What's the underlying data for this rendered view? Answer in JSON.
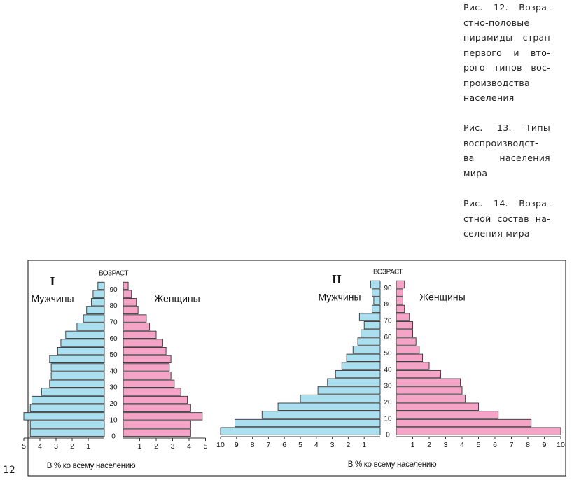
{
  "captions": [
    {
      "lines": [
        "Рис. 12. Возра-",
        "стно-половые",
        "пирамиды стран",
        "первого и вто-",
        "рого типов вос-",
        "производства",
        "населения"
      ]
    },
    {
      "lines": [
        "Рис. 13. Типы",
        "воспроизводст-",
        "ва населения",
        "мира"
      ]
    },
    {
      "lines": [
        "Рис. 14. Возра-",
        "стной состав на-",
        "селения мира"
      ]
    }
  ],
  "page_number": "12",
  "chart_data": [
    {
      "type": "pyramid",
      "label": "I",
      "age_label": "ВОЗРАСТ",
      "xlabel": "В % ко всему населению",
      "ages": [
        0,
        5,
        10,
        15,
        20,
        25,
        30,
        35,
        40,
        45,
        50,
        55,
        60,
        65,
        70,
        75,
        80,
        85,
        90
      ],
      "ylim": [
        0,
        95
      ],
      "yticks": [
        0,
        10,
        20,
        30,
        40,
        50,
        60,
        70,
        80,
        90
      ],
      "series": [
        {
          "name": "Мужчины",
          "color": "#aadff0",
          "xlim": [
            0,
            5
          ],
          "xticks": [
            5,
            4,
            3,
            2,
            1
          ],
          "values": [
            4.6,
            4.6,
            5.0,
            4.6,
            4.5,
            3.9,
            3.4,
            3.3,
            3.3,
            3.4,
            2.9,
            2.7,
            2.4,
            1.7,
            1.3,
            1.1,
            0.8,
            0.7,
            0.4
          ]
        },
        {
          "name": "Женщины",
          "color": "#f5a3c7",
          "xlim": [
            0,
            5
          ],
          "xticks": [
            1,
            2,
            3,
            4,
            5
          ],
          "values": [
            4.1,
            4.1,
            4.8,
            4.1,
            3.9,
            3.5,
            3.1,
            2.9,
            2.8,
            2.9,
            2.6,
            2.4,
            2.0,
            1.6,
            1.4,
            0.9,
            0.8,
            0.5,
            0.3
          ]
        }
      ]
    },
    {
      "type": "pyramid",
      "label": "II",
      "age_label": "ВОЗРАСТ",
      "xlabel": "В % ко всему населению",
      "ages": [
        0,
        5,
        10,
        15,
        20,
        25,
        30,
        35,
        40,
        45,
        50,
        55,
        60,
        65,
        70,
        75,
        80,
        85,
        90
      ],
      "ylim": [
        0,
        95
      ],
      "yticks": [
        0,
        10,
        20,
        30,
        40,
        50,
        60,
        70,
        80,
        90
      ],
      "series": [
        {
          "name": "Мужчины",
          "color": "#aadff0",
          "xlim": [
            0,
            10
          ],
          "xticks": [
            10,
            9,
            8,
            7,
            6,
            5,
            4,
            3,
            2,
            1
          ],
          "values": [
            10.0,
            9.1,
            7.4,
            6.4,
            5.0,
            3.9,
            3.3,
            2.8,
            2.4,
            2.1,
            1.7,
            1.4,
            1.2,
            1.0,
            1.3,
            0.5,
            0.4,
            0.5,
            0.6
          ]
        },
        {
          "name": "Женщины",
          "color": "#f5a3c7",
          "xlim": [
            0,
            10
          ],
          "xticks": [
            1,
            2,
            3,
            4,
            5,
            6,
            7,
            8,
            9,
            10
          ],
          "values": [
            10.0,
            8.2,
            6.2,
            5.0,
            4.2,
            4.0,
            3.9,
            2.7,
            2.0,
            1.6,
            1.4,
            1.2,
            1.0,
            1.0,
            0.8,
            0.5,
            0.4,
            0.4,
            0.5
          ]
        }
      ]
    }
  ]
}
